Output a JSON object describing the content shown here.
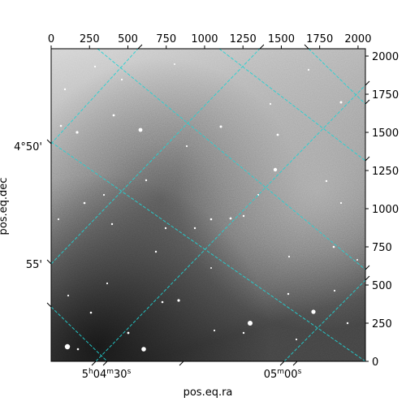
{
  "chart_data": {
    "type": "image",
    "colormap": "grayscale",
    "xlabel": "pos.eq.ra",
    "ylabel": "pos.eq.dec",
    "pixel_axes": {
      "x": {
        "lim": [
          0,
          2048
        ],
        "ticks": [
          0,
          250,
          500,
          750,
          1000,
          1250,
          1500,
          1750,
          2000
        ]
      },
      "y": {
        "lim": [
          0,
          2048
        ],
        "ticks": [
          0,
          250,
          500,
          750,
          1000,
          1250,
          1500,
          1750,
          2000
        ]
      }
    },
    "world_ticks": {
      "ra": [
        {
          "h": "5",
          "m": "04",
          "s": "30",
          "label_parts": [
            "5",
            "h",
            "04",
            "m",
            "30",
            "s"
          ]
        },
        {
          "m": "05",
          "s": "00",
          "label_parts": [
            "05",
            "m",
            "00",
            "s"
          ]
        }
      ],
      "dec": [
        "4°50'",
        "55'"
      ]
    },
    "grid": {
      "color": "#22d3d3",
      "style": "dashed"
    }
  }
}
